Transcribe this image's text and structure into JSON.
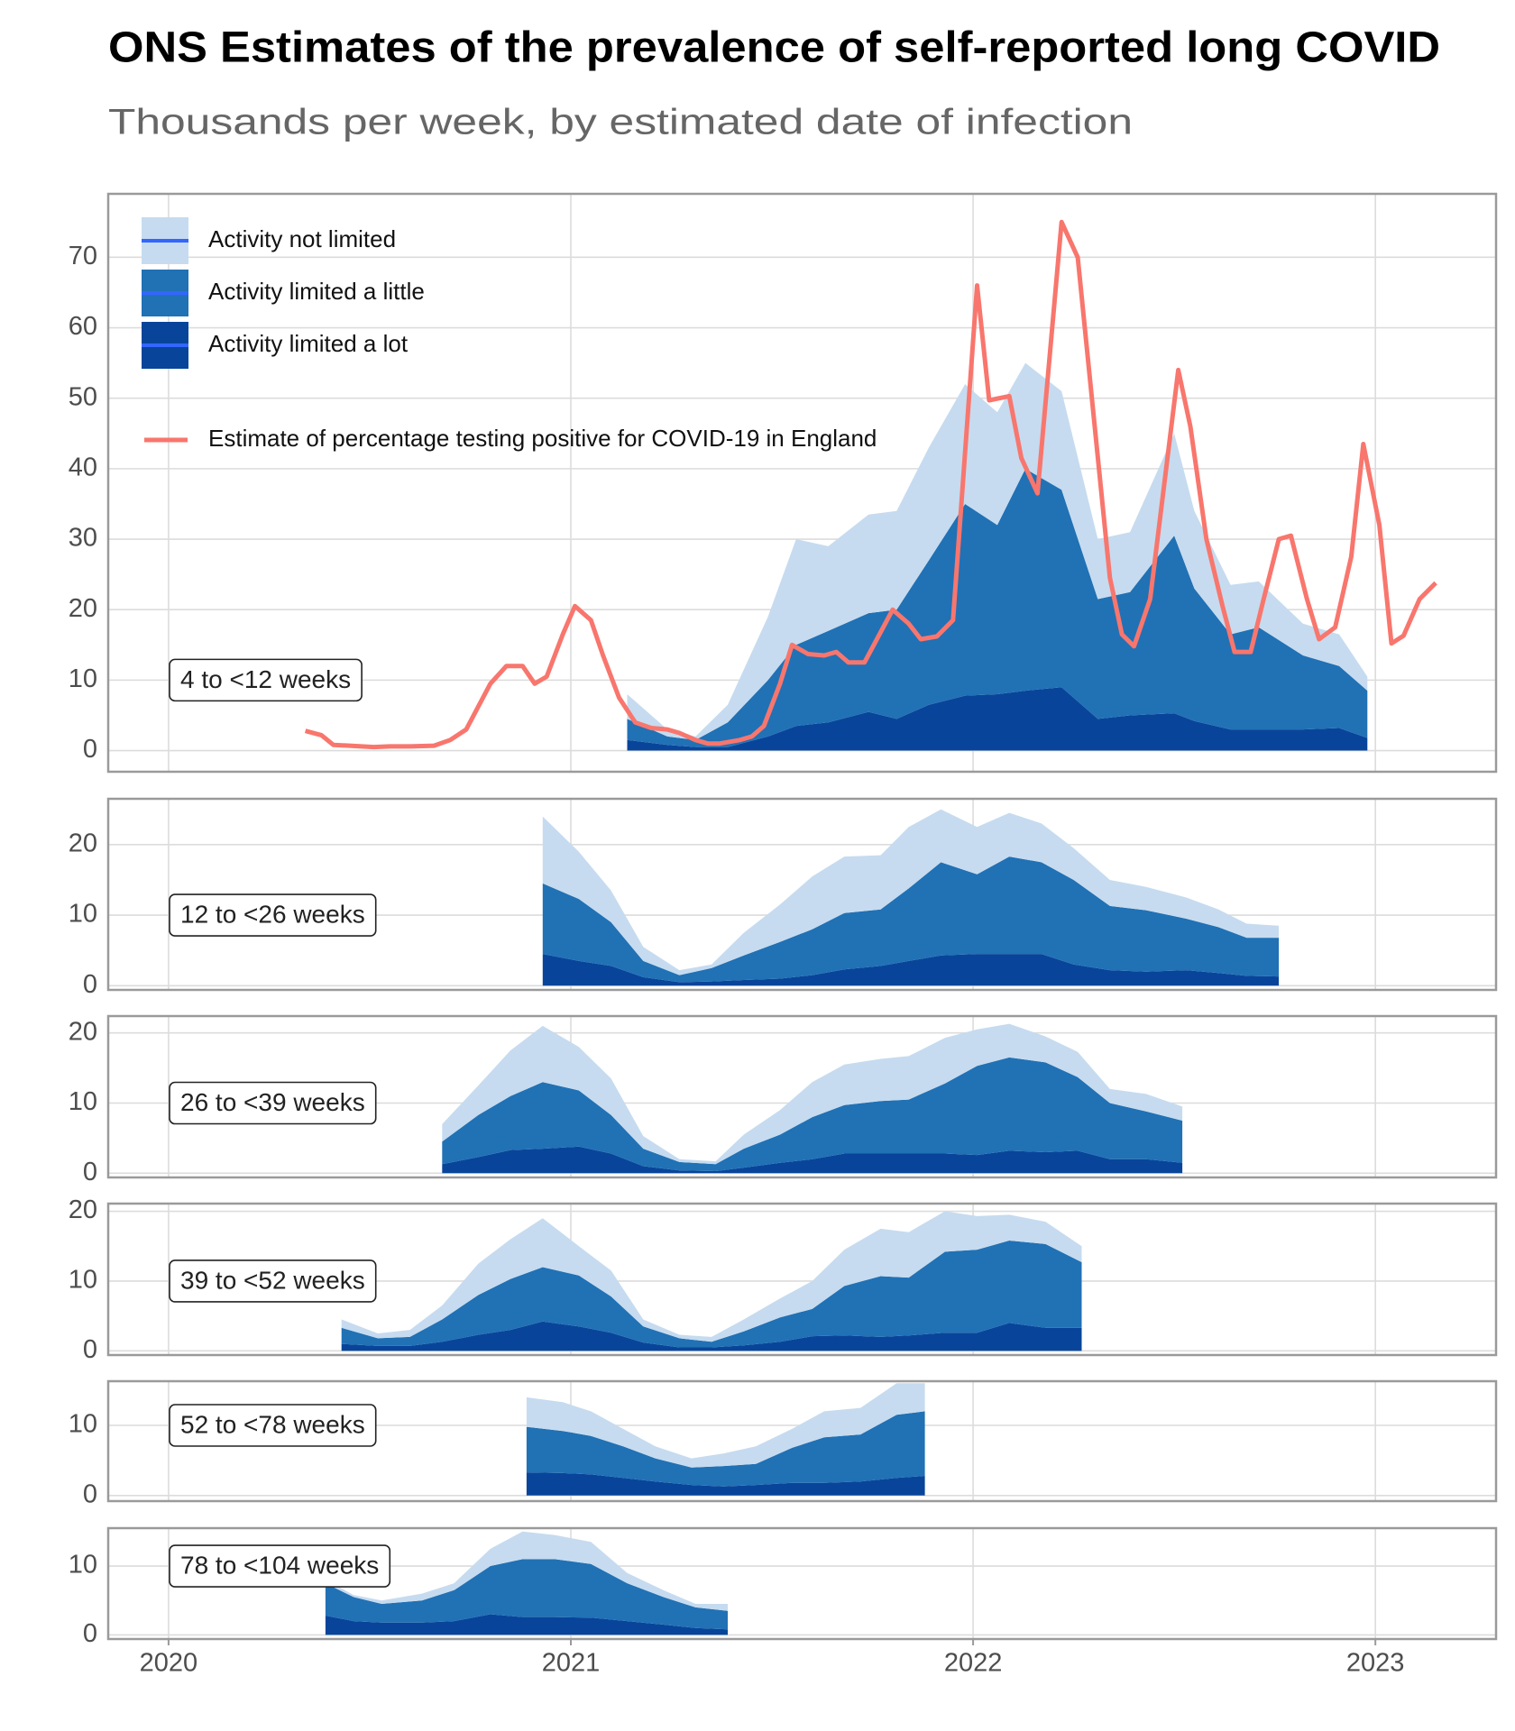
{
  "title": "ONS Estimates of the prevalence of self-reported long COVID",
  "subtitle": "Thousands per week, by estimated date of infection",
  "chart_data": [
    {
      "type": "area",
      "stacked": true,
      "label": "4 to <12 weeks",
      "legend": "top-left",
      "grid": true,
      "xlim": [
        2019.85,
        2023.3
      ],
      "xticks": [
        2020,
        2021,
        2022,
        2023
      ],
      "ylim": [
        -3,
        79
      ],
      "yticks": [
        0,
        10,
        20,
        30,
        40,
        50,
        60,
        70
      ],
      "x": [
        2021.14,
        2021.24,
        2021.31,
        2021.39,
        2021.49,
        2021.56,
        2021.64,
        2021.74,
        2021.81,
        2021.89,
        2021.98,
        2022.06,
        2022.13,
        2022.22,
        2022.31,
        2022.39,
        2022.5,
        2022.55,
        2022.64,
        2022.71,
        2022.82,
        2022.91,
        2022.98
      ],
      "series": [
        {
          "name": "Activity not limited",
          "color": "#c6dbef",
          "values": [
            3.5,
            1,
            0.5,
            2.5,
            9,
            15,
            12,
            14,
            14,
            16,
            17,
            16,
            15,
            14,
            8.5,
            8.5,
            14.5,
            11,
            7,
            6.5,
            4.5,
            4.5,
            2
          ]
        },
        {
          "name": "Activity limited a little",
          "color": "#2171b5",
          "values": [
            3,
            1.2,
            1,
            3.5,
            8,
            11.5,
            13,
            14,
            15.5,
            20.5,
            27.2,
            24,
            31.5,
            28,
            17,
            17.5,
            25.2,
            18.8,
            13.5,
            14.5,
            10.5,
            8.8,
            6.7
          ]
        },
        {
          "name": "Activity limited a lot",
          "color": "#08459a",
          "values": [
            1.5,
            0.8,
            0.5,
            0.5,
            2,
            3.5,
            4,
            5.5,
            4.5,
            6.5,
            7.8,
            8,
            8.5,
            9,
            4.5,
            5,
            5.3,
            4.2,
            3,
            3,
            3,
            3.2,
            1.8
          ]
        },
        {
          "name": "Estimate of percentage testing positive for COVID-19 in England",
          "type": "line",
          "color": "#f8766d",
          "x": [
            2020.34,
            2020.38,
            2020.41,
            2020.45,
            2020.51,
            2020.55,
            2020.6,
            2020.66,
            2020.7,
            2020.74,
            2020.8,
            2020.84,
            2020.88,
            2020.91,
            2020.94,
            2020.98,
            2021.01,
            2021.05,
            2021.08,
            2021.12,
            2021.16,
            2021.2,
            2021.24,
            2021.27,
            2021.31,
            2021.34,
            2021.37,
            2021.42,
            2021.45,
            2021.48,
            2021.52,
            2021.55,
            2021.59,
            2021.63,
            2021.66,
            2021.69,
            2021.73,
            2021.8,
            2021.84,
            2021.87,
            2021.91,
            2021.95,
            2022.01,
            2022.04,
            2022.09,
            2022.12,
            2022.16,
            2022.22,
            2022.26,
            2022.34,
            2022.37,
            2022.4,
            2022.44,
            2022.51,
            2022.54,
            2022.58,
            2022.62,
            2022.65,
            2022.69,
            2022.72,
            2022.76,
            2022.79,
            2022.83,
            2022.86,
            2022.9,
            2022.94,
            2022.97,
            2023.01,
            2023.04,
            2023.07,
            2023.11,
            2023.15
          ],
          "values": [
            2.8,
            2.2,
            0.8,
            0.7,
            0.5,
            0.6,
            0.6,
            0.7,
            1.5,
            3,
            9.5,
            12,
            12,
            9.5,
            10.5,
            16.5,
            20.5,
            18.5,
            13.5,
            7.5,
            4,
            3.2,
            3,
            2.5,
            1.5,
            1,
            1,
            1.5,
            2,
            3.5,
            9.5,
            15,
            13.7,
            13.5,
            14,
            12.5,
            12.5,
            20,
            18,
            15.8,
            16.2,
            18.5,
            66,
            49.7,
            50.3,
            41.5,
            36.5,
            75,
            70,
            24.5,
            16.5,
            14.8,
            21.5,
            54,
            46,
            30,
            20.5,
            14,
            14,
            21,
            30,
            30.5,
            21.5,
            15.8,
            17.5,
            27.5,
            43.5,
            32,
            15.2,
            16.3,
            21.5,
            23.8
          ]
        }
      ]
    },
    {
      "type": "area",
      "stacked": true,
      "label": "12 to <26 weeks",
      "grid": true,
      "xlim": [
        2019.85,
        2023.3
      ],
      "xticks": [
        2020,
        2021,
        2022,
        2023
      ],
      "ylim": [
        -0.6,
        26.5
      ],
      "yticks": [
        0,
        10,
        20
      ],
      "x": [
        2020.93,
        2021.02,
        2021.1,
        2021.18,
        2021.27,
        2021.35,
        2021.43,
        2021.52,
        2021.6,
        2021.68,
        2021.77,
        2021.84,
        2021.92,
        2022.01,
        2022.09,
        2022.17,
        2022.25,
        2022.34,
        2022.43,
        2022.53,
        2022.61,
        2022.68,
        2022.76
      ],
      "series": [
        {
          "color": "#c6dbef",
          "values": [
            9.5,
            6.7,
            4.5,
            2,
            0.7,
            0.5,
            3.2,
            5.3,
            7.5,
            8,
            7.7,
            8.7,
            7.5,
            6.7,
            6.2,
            5.5,
            4.5,
            3.7,
            3.3,
            3,
            2.5,
            2,
            1.7
          ]
        },
        {
          "color": "#2171b5",
          "values": [
            10,
            8.8,
            6.2,
            2.3,
            1,
            1.9,
            3.5,
            5.2,
            6.5,
            8,
            8,
            10.3,
            13.2,
            11.3,
            13.8,
            13,
            12,
            9.1,
            8.7,
            7.3,
            6.5,
            5.4,
            5.5
          ]
        },
        {
          "color": "#08459a",
          "values": [
            4.5,
            3.5,
            2.8,
            1.2,
            0.5,
            0.6,
            0.8,
            1,
            1.5,
            2.3,
            2.8,
            3.5,
            4.3,
            4.5,
            4.5,
            4.5,
            3,
            2.2,
            2,
            2.2,
            1.8,
            1.4,
            1.3
          ]
        }
      ]
    },
    {
      "type": "area",
      "stacked": true,
      "label": "26 to <39 weeks",
      "grid": true,
      "xlim": [
        2019.85,
        2023.3
      ],
      "xticks": [
        2020,
        2021,
        2022,
        2023
      ],
      "ylim": [
        -0.6,
        22.4
      ],
      "yticks": [
        0,
        10,
        20
      ],
      "x": [
        2020.68,
        2020.77,
        2020.85,
        2020.93,
        2021.02,
        2021.1,
        2021.18,
        2021.27,
        2021.36,
        2021.43,
        2021.52,
        2021.6,
        2021.68,
        2021.77,
        2021.84,
        2021.93,
        2022.01,
        2022.09,
        2022.18,
        2022.26,
        2022.34,
        2022.43,
        2022.52
      ],
      "series": [
        {
          "color": "#c6dbef",
          "values": [
            2.5,
            4.2,
            6.5,
            8,
            6.2,
            5.2,
            1.8,
            0.4,
            0.4,
            2,
            3.5,
            5,
            5.8,
            6,
            6.2,
            6.5,
            5.2,
            4.8,
            3.7,
            3.6,
            2,
            2.5,
            2
          ]
        },
        {
          "color": "#2171b5",
          "values": [
            3.2,
            6,
            7.7,
            9.5,
            8,
            5.5,
            2.5,
            1.2,
            1,
            2.7,
            4,
            6,
            6.9,
            7.5,
            7.7,
            10,
            12.7,
            13.3,
            12.8,
            10.5,
            8,
            6.8,
            6
          ]
        },
        {
          "color": "#08459a",
          "values": [
            1.3,
            2.3,
            3.3,
            3.5,
            3.8,
            2.8,
            1,
            0.4,
            0.3,
            0.8,
            1.5,
            2,
            2.8,
            2.8,
            2.8,
            2.8,
            2.6,
            3.2,
            3,
            3.2,
            2,
            2,
            1.5
          ]
        }
      ]
    },
    {
      "type": "area",
      "stacked": true,
      "label": "39 to <52 weeks",
      "grid": true,
      "xlim": [
        2019.85,
        2023.3
      ],
      "xticks": [
        2020,
        2021,
        2022,
        2023
      ],
      "ylim": [
        -0.6,
        21.1
      ],
      "yticks": [
        0,
        10,
        20
      ],
      "x": [
        2020.43,
        2020.52,
        2020.6,
        2020.68,
        2020.77,
        2020.85,
        2020.93,
        2021.02,
        2021.1,
        2021.18,
        2021.27,
        2021.35,
        2021.43,
        2021.52,
        2021.6,
        2021.68,
        2021.77,
        2021.84,
        2021.93,
        2022.01,
        2022.09,
        2022.18,
        2022.27
      ],
      "series": [
        {
          "color": "#c6dbef",
          "values": [
            1.2,
            0.7,
            1,
            2,
            4.5,
            5.7,
            7,
            4.2,
            3.7,
            1,
            0.5,
            0.7,
            1.7,
            2.7,
            4,
            5.2,
            6.8,
            6.5,
            5.8,
            4.8,
            3.7,
            3.2,
            2.3
          ]
        },
        {
          "color": "#2171b5",
          "values": [
            2.3,
            1.1,
            1.3,
            3.2,
            5.7,
            7.3,
            7.8,
            7.3,
            5.2,
            2.3,
            1.3,
            0.8,
            2,
            3.5,
            3.9,
            7.1,
            8.7,
            8.3,
            11.6,
            11.9,
            11.8,
            12,
            9.4
          ]
        },
        {
          "color": "#08459a",
          "values": [
            1,
            0.7,
            0.7,
            1.3,
            2.3,
            3,
            4.2,
            3.5,
            2.6,
            1.2,
            0.5,
            0.5,
            0.8,
            1.3,
            2.1,
            2.2,
            2,
            2.2,
            2.6,
            2.6,
            4,
            3.3,
            3.3
          ]
        }
      ]
    },
    {
      "type": "area",
      "stacked": true,
      "label": "52 to <78 weeks",
      "grid": true,
      "xlim": [
        2019.85,
        2023.3
      ],
      "xticks": [
        2020,
        2021,
        2022,
        2023
      ],
      "ylim": [
        -0.8,
        16.3
      ],
      "yticks": [
        0,
        10
      ],
      "x": [
        2020.89,
        2020.98,
        2021.05,
        2021.13,
        2021.21,
        2021.3,
        2021.38,
        2021.46,
        2021.55,
        2021.63,
        2021.72,
        2021.81,
        2021.88
      ],
      "series": [
        {
          "color": "#c6dbef",
          "values": [
            4.2,
            4.1,
            3.5,
            2.5,
            1.7,
            1.3,
            1.8,
            2.5,
            2.7,
            3.7,
            3.8,
            4.5,
            4
          ]
        },
        {
          "color": "#2171b5",
          "values": [
            6.5,
            6,
            5.5,
            4.5,
            3.3,
            2.5,
            2.9,
            3,
            5,
            6.5,
            6.7,
            9,
            9.2
          ]
        },
        {
          "color": "#08459a",
          "values": [
            3.3,
            3.2,
            3,
            2.5,
            2,
            1.5,
            1.3,
            1.5,
            1.8,
            1.8,
            2,
            2.5,
            2.8
          ]
        }
      ]
    },
    {
      "type": "area",
      "stacked": true,
      "label": "78 to <104 weeks",
      "grid": true,
      "xlim": [
        2019.85,
        2023.3
      ],
      "xticks": [
        2020,
        2021,
        2022,
        2023
      ],
      "ylim": [
        -0.6,
        15.5
      ],
      "yticks": [
        0,
        10
      ],
      "x": [
        2020.39,
        2020.46,
        2020.53,
        2020.63,
        2020.71,
        2020.8,
        2020.88,
        2020.96,
        2021.05,
        2021.14,
        2021.23,
        2021.31,
        2021.39
      ],
      "series": [
        {
          "color": "#c6dbef",
          "values": [
            0.5,
            0.3,
            0.5,
            1,
            1,
            2.5,
            4,
            3.5,
            3.2,
            1.5,
            1,
            0.5,
            1
          ]
        },
        {
          "color": "#2171b5",
          "values": [
            4.7,
            3.5,
            2.7,
            3.2,
            4.5,
            7,
            8.4,
            8.4,
            7.8,
            5.5,
            4,
            3,
            2.7
          ]
        },
        {
          "color": "#08459a",
          "values": [
            2.8,
            2,
            1.8,
            1.8,
            2,
            3,
            2.6,
            2.6,
            2.5,
            2,
            1.5,
            1,
            0.8
          ]
        }
      ]
    }
  ]
}
